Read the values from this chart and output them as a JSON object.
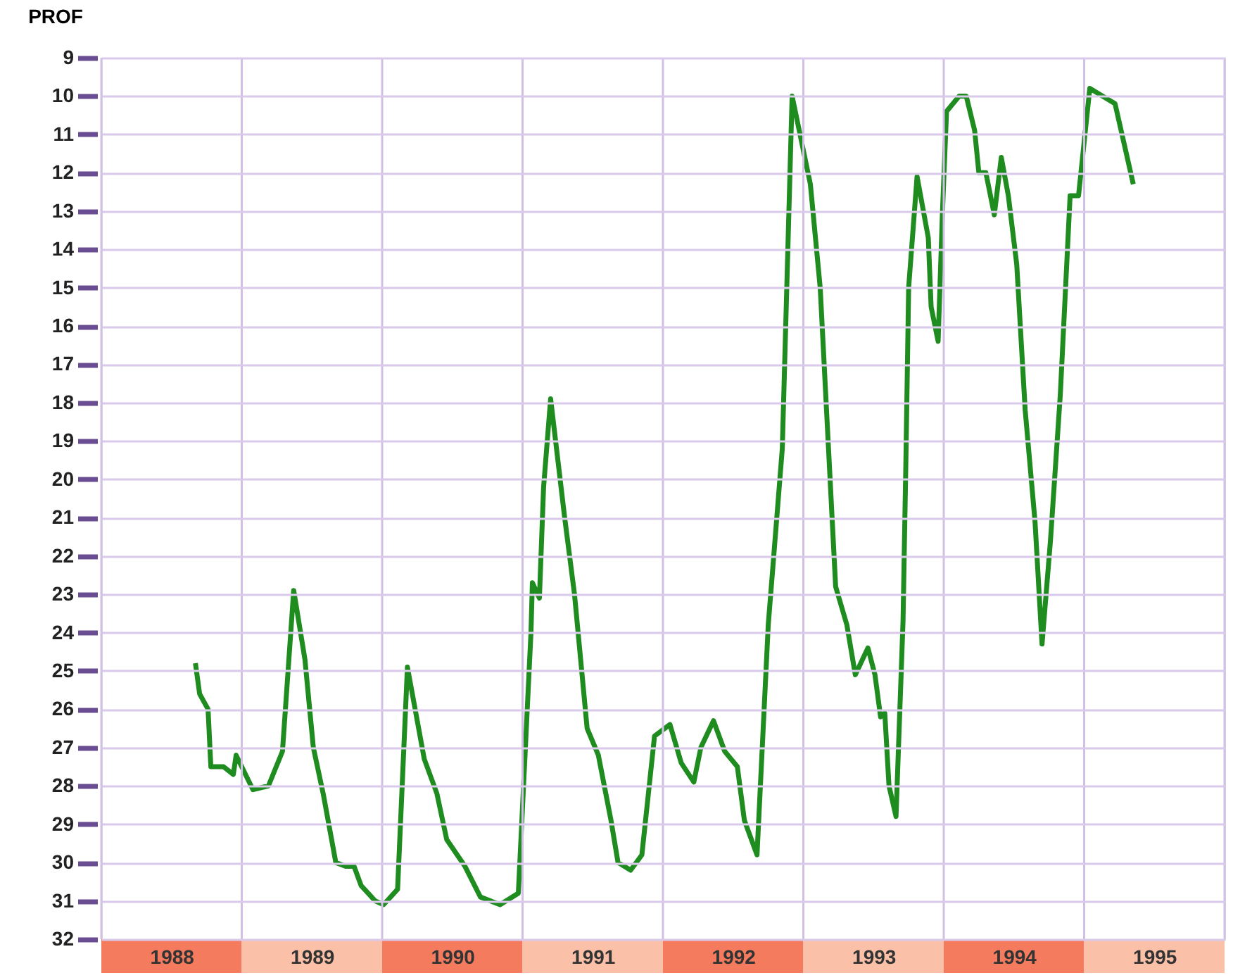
{
  "chart_data": {
    "type": "line",
    "ylabel": "PROF",
    "x": [
      1988.67,
      1988.7,
      1988.76,
      1988.78,
      1988.87,
      1988.94,
      1988.96,
      1989.08,
      1989.19,
      1989.29,
      1989.37,
      1989.45,
      1989.51,
      1989.58,
      1989.67,
      1989.74,
      1989.8,
      1989.85,
      1989.95,
      1990.01,
      1990.11,
      1990.18,
      1990.3,
      1990.39,
      1990.46,
      1990.59,
      1990.7,
      1990.84,
      1990.97,
      1991.06,
      1991.07,
      1991.12,
      1991.15,
      1991.2,
      1991.3,
      1991.37,
      1991.46,
      1991.54,
      1991.63,
      1991.68,
      1991.77,
      1991.85,
      1991.94,
      1992.05,
      1992.13,
      1992.22,
      1992.27,
      1992.36,
      1992.44,
      1992.53,
      1992.58,
      1992.67,
      1992.75,
      1992.85,
      1992.92,
      1993.05,
      1993.12,
      1993.23,
      1993.31,
      1993.37,
      1993.46,
      1993.51,
      1993.55,
      1993.58,
      1993.61,
      1993.66,
      1993.71,
      1993.73,
      1993.75,
      1993.81,
      1993.89,
      1993.91,
      1993.96,
      1993.99,
      1994.02,
      1994.11,
      1994.16,
      1994.22,
      1994.25,
      1994.3,
      1994.36,
      1994.41,
      1994.46,
      1994.52,
      1994.58,
      1994.65,
      1994.7,
      1994.76,
      1994.83,
      1994.9,
      1994.96,
      1995.04,
      1995.22,
      1995.35
    ],
    "series": [
      {
        "color": "#1e8c1e",
        "values": [
          24.8,
          25.6,
          26.0,
          27.5,
          27.5,
          27.7,
          27.2,
          28.1,
          28.0,
          27.1,
          22.9,
          24.7,
          27.0,
          28.2,
          30.0,
          30.1,
          30.1,
          30.6,
          31.0,
          31.1,
          30.7,
          24.9,
          27.3,
          28.2,
          29.4,
          30.1,
          30.9,
          31.1,
          30.8,
          24.0,
          22.7,
          23.1,
          20.2,
          17.9,
          21.0,
          23.0,
          26.5,
          27.2,
          28.9,
          30.0,
          30.2,
          29.8,
          26.7,
          26.4,
          27.4,
          27.9,
          27.0,
          26.3,
          27.1,
          27.5,
          28.9,
          29.8,
          23.8,
          19.2,
          10.0,
          12.3,
          15.0,
          22.8,
          23.8,
          25.1,
          24.4,
          25.1,
          26.2,
          26.1,
          28.0,
          28.8,
          23.7,
          19.6,
          15.0,
          12.1,
          13.7,
          15.5,
          16.4,
          13.1,
          10.4,
          10.0,
          10.0,
          10.9,
          12.0,
          12.0,
          13.1,
          11.6,
          12.6,
          14.4,
          18.2,
          21.1,
          24.3,
          21.6,
          17.8,
          12.6,
          12.6,
          9.8,
          10.2,
          12.3
        ]
      }
    ],
    "xlim": [
      1988,
      1996
    ],
    "xticks": [
      {
        "value": 1988,
        "label": null
      },
      {
        "value": 1988.5,
        "label": "1988"
      },
      {
        "value": 1989,
        "label": null
      },
      {
        "value": 1989.5,
        "label": "1989"
      },
      {
        "value": 1990,
        "label": null
      },
      {
        "value": 1990.5,
        "label": "1990"
      },
      {
        "value": 1991,
        "label": null
      },
      {
        "value": 1991.5,
        "label": "1991"
      },
      {
        "value": 1992,
        "label": null
      },
      {
        "value": 1992.5,
        "label": "1992"
      },
      {
        "value": 1993,
        "label": null
      },
      {
        "value": 1993.5,
        "label": "1993"
      },
      {
        "value": 1994,
        "label": null
      },
      {
        "value": 1994.5,
        "label": "1994"
      },
      {
        "value": 1995,
        "label": null
      },
      {
        "value": 1995.5,
        "label": "1995"
      },
      {
        "value": 1996,
        "label": null
      }
    ],
    "ylim": [
      32,
      9
    ],
    "yticks": [
      9,
      10,
      11,
      12,
      13,
      14,
      15,
      16,
      17,
      18,
      19,
      20,
      21,
      22,
      23,
      24,
      25,
      26,
      27,
      28,
      29,
      30,
      31,
      32
    ],
    "grid": true
  }
}
